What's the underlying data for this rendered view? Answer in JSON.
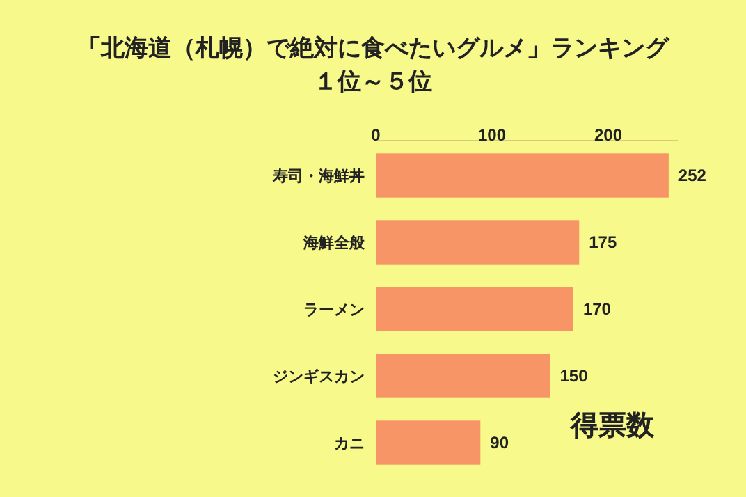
{
  "chart_data": {
    "type": "bar",
    "orientation": "horizontal",
    "title": "「北海道（札幌）で絶対に食べたいグルメ」ランキング",
    "subtitle": "１位～５位",
    "xlabel": "得票数",
    "categories": [
      "寿司・海鮮丼",
      "海鮮全般",
      "ラーメン",
      "ジンギスカン",
      "カニ"
    ],
    "values": [
      252,
      175,
      170,
      150,
      90
    ],
    "color": "#f79566",
    "xlim": [
      0,
      260
    ],
    "xticks": [
      0,
      100,
      200
    ],
    "data_labels": true
  }
}
